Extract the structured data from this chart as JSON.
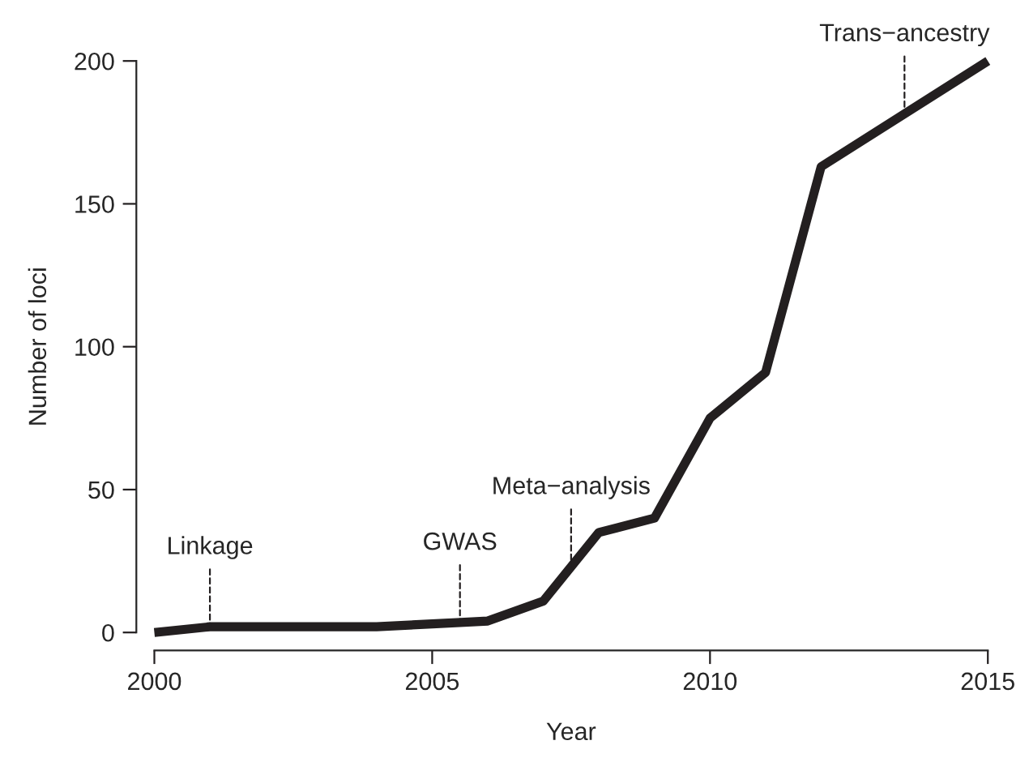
{
  "chart_data": {
    "type": "line",
    "xlabel": "Year",
    "ylabel": "Number of loci",
    "x": [
      2000,
      2001,
      2002,
      2003,
      2004,
      2005,
      2006,
      2007,
      2008,
      2009,
      2010,
      2011,
      2012,
      2015
    ],
    "series": [
      {
        "color": "#231f20",
        "values": [
          0,
          2,
          2,
          2,
          2,
          3,
          4,
          11,
          35,
          40,
          75,
          91,
          163,
          200
        ]
      }
    ],
    "xlim": [
      2000,
      2015
    ],
    "ylim": [
      0,
      200
    ],
    "xticks": [
      2000,
      2005,
      2010,
      2015
    ],
    "yticks": [
      0,
      50,
      100,
      150,
      200
    ],
    "grid": false,
    "marker": "none",
    "line_style": "solid",
    "annotations": [
      {
        "text": "Linkage",
        "x": 2001,
        "y": 2
      },
      {
        "text": "GWAS",
        "x": 2005.5,
        "y": 3.5
      },
      {
        "text": "Meta−analysis",
        "x": 2007.5,
        "y": 23
      },
      {
        "text": "Trans−ancestry",
        "x": 2013.5,
        "y": 181.5
      }
    ]
  }
}
